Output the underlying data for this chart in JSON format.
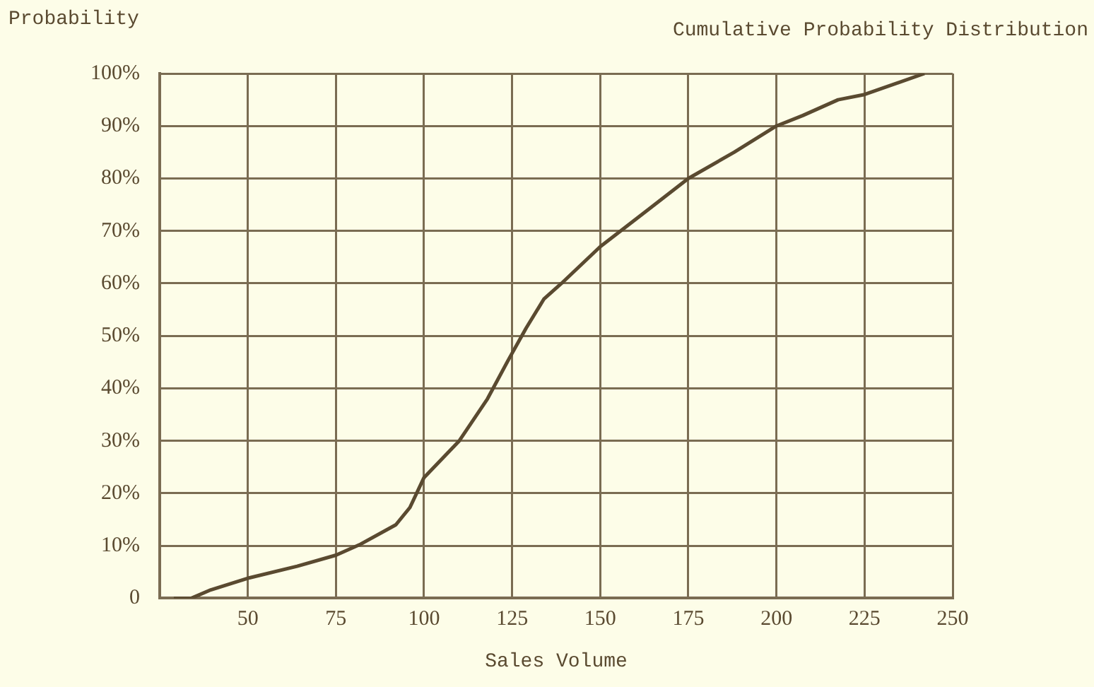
{
  "chart_data": {
    "type": "line",
    "title": "Cumulative Probability Distribution",
    "xlabel": "Sales Volume",
    "ylabel": "Probability",
    "series": [
      {
        "color": "#5a4a30",
        "x": [
          29,
          34,
          39.5,
          50.5,
          64,
          75,
          82,
          92,
          96,
          100,
          110,
          118,
          124,
          129,
          134,
          139,
          150,
          163.5,
          175,
          188,
          200,
          207.5,
          217.5,
          225,
          242
        ],
        "values": [
          0,
          0,
          1.6,
          3.9,
          6.1,
          8.2,
          10.3,
          14,
          17.3,
          23,
          30,
          38,
          45.5,
          51.5,
          57,
          60,
          67,
          74,
          80,
          85,
          90,
          92,
          95,
          96,
          100
        ]
      }
    ],
    "xlim": [
      25,
      250
    ],
    "xticks": [
      50,
      75,
      100,
      125,
      150,
      175,
      200,
      225,
      250
    ],
    "ylim": [
      0,
      100
    ],
    "yticks": [
      0,
      {
        "value": 10,
        "label": "10%"
      },
      {
        "value": 20,
        "label": "20%"
      },
      {
        "value": 30,
        "label": "30%"
      },
      {
        "value": 40,
        "label": "40%"
      },
      {
        "value": 50,
        "label": "50%"
      },
      {
        "value": 60,
        "label": "60%"
      },
      {
        "value": 70,
        "label": "70%"
      },
      {
        "value": 80,
        "label": "80%"
      },
      {
        "value": 90,
        "label": "90%"
      },
      {
        "value": 100,
        "label": "100%"
      }
    ],
    "grid": true,
    "legend": false,
    "marker": "none",
    "line_style": "solid"
  }
}
